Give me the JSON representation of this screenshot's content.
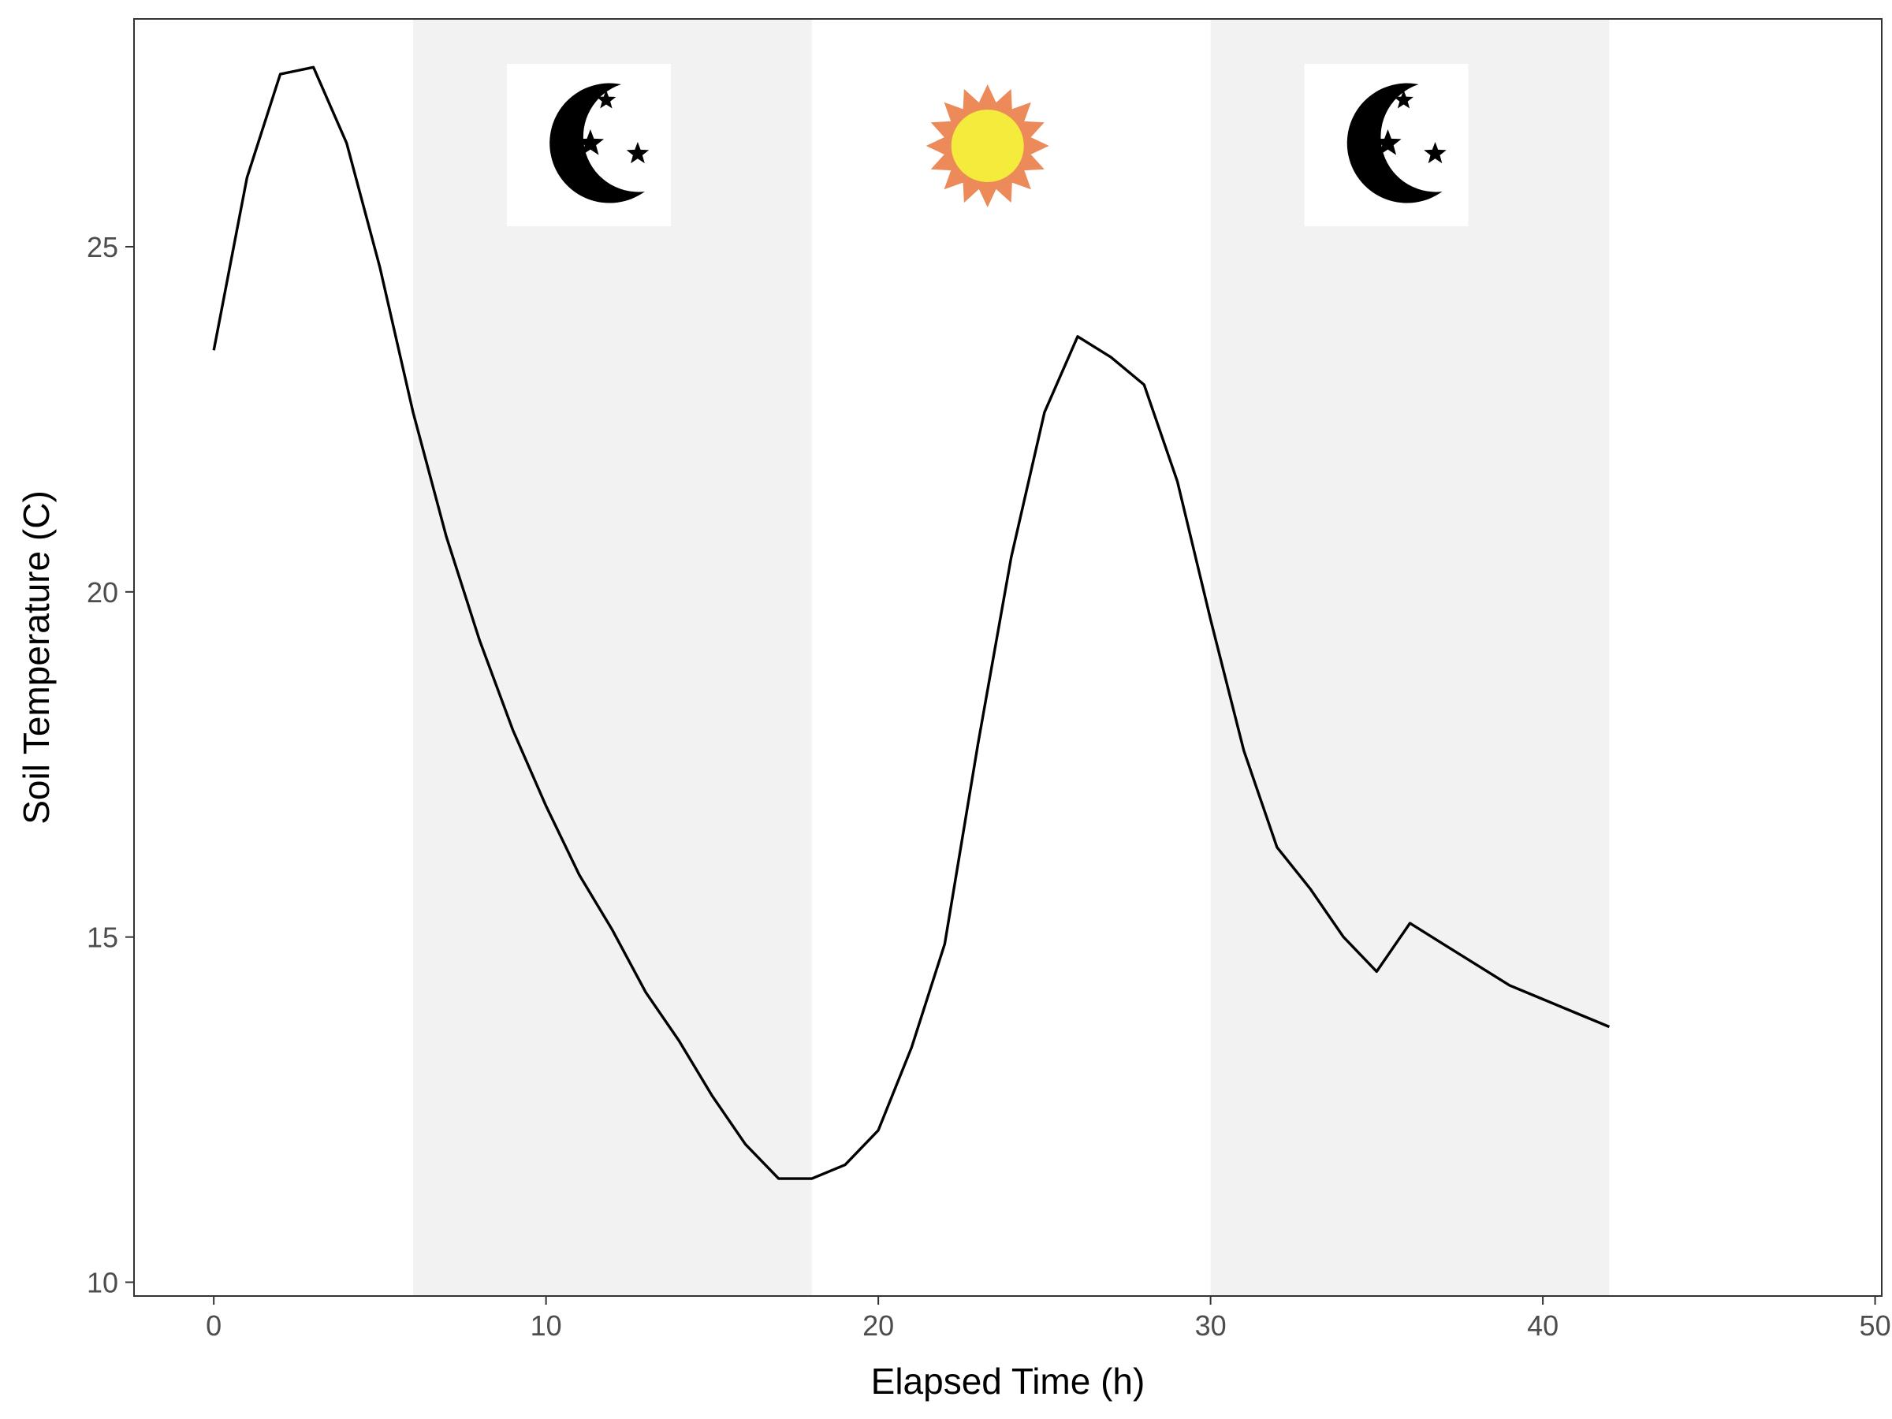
{
  "chart_data": {
    "type": "line",
    "xlabel": "Elapsed Time (h)",
    "ylabel": "Soil Temperature (C)",
    "xlim": [
      -2.4,
      50.2
    ],
    "ylim": [
      9.8,
      28.3
    ],
    "x_ticks": [
      0,
      10,
      20,
      30,
      40,
      50
    ],
    "y_ticks": [
      10,
      15,
      20,
      25
    ],
    "grid": false,
    "line_color": "#000000",
    "series": [
      {
        "x": [
          0,
          1,
          2,
          3,
          4,
          5,
          6,
          7,
          8,
          9,
          10,
          11,
          12,
          13,
          14,
          15,
          16,
          17,
          18,
          19,
          20,
          21,
          22,
          23,
          24,
          25,
          26,
          27,
          28,
          29,
          30,
          31,
          32,
          33,
          34,
          35,
          36,
          37,
          38,
          39,
          40,
          41,
          42
        ],
        "values": [
          23.5,
          26.0,
          27.5,
          27.6,
          26.5,
          24.7,
          22.6,
          20.8,
          19.3,
          18.0,
          16.9,
          15.9,
          15.1,
          14.2,
          13.5,
          12.7,
          12.0,
          11.5,
          11.5,
          11.7,
          12.2,
          13.4,
          14.9,
          17.8,
          20.5,
          22.6,
          23.7,
          23.4,
          23.0,
          21.6,
          19.6,
          17.7,
          16.3,
          15.7,
          15.0,
          14.5,
          15.2,
          14.9,
          14.6,
          14.3,
          14.1,
          13.9,
          13.7
        ]
      }
    ],
    "shaded_regions": [
      {
        "label": "night",
        "x_start": 6,
        "x_end": 18,
        "color": "#f2f2f2",
        "icon": "moon-stars-icon"
      },
      {
        "label": "day",
        "x_start": 18,
        "x_end": 30,
        "color": "#ffffff",
        "icon": "sun-icon"
      },
      {
        "label": "night",
        "x_start": 30,
        "x_end": 42,
        "color": "#f2f2f2",
        "icon": "moon-stars-icon"
      }
    ],
    "sun_colors": {
      "rays": "#ec8a5a",
      "disc": "#f4eb3c"
    }
  }
}
